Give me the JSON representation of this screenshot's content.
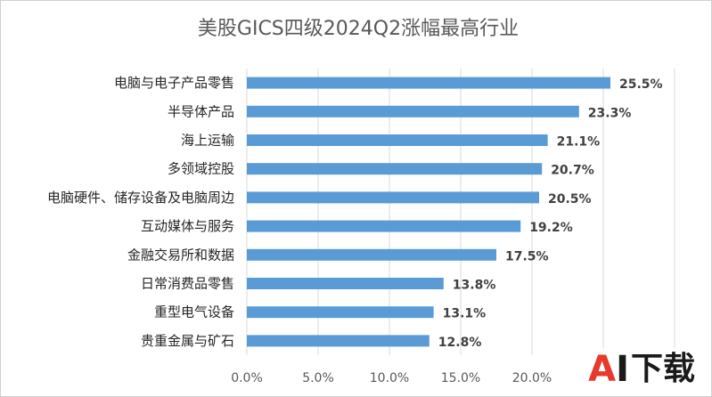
{
  "chart_data": {
    "type": "bar",
    "orientation": "horizontal",
    "title": "美股GICS四级2024Q2涨幅最高行业",
    "categories": [
      "电脑与电子产品零售",
      "半导体产品",
      "海上运输",
      "多领域控股",
      "电脑硬件、储存设备及电脑周边",
      "互动媒体与服务",
      "金融交易所和数据",
      "日常消费品零售",
      "重型电气设备",
      "贵重金属与矿石"
    ],
    "values": [
      25.5,
      23.3,
      21.1,
      20.7,
      20.5,
      19.2,
      17.5,
      13.8,
      13.1,
      12.8
    ],
    "value_labels": [
      "25.5%",
      "23.3%",
      "21.1%",
      "20.7%",
      "20.5%",
      "19.2%",
      "17.5%",
      "13.8%",
      "13.1%",
      "12.8%"
    ],
    "x_ticks": [
      "0.0%",
      "5.0%",
      "10.0%",
      "15.0%",
      "20.0%"
    ],
    "x_tick_values": [
      0,
      5,
      10,
      15,
      20
    ],
    "xlim": [
      0,
      30
    ],
    "grid": "vertical",
    "bar_color": "#5b9bd5",
    "legend": "none"
  },
  "watermark": {
    "a": "A",
    "i": "I",
    "rest": "下载",
    "icon": "ai-download-logo"
  }
}
